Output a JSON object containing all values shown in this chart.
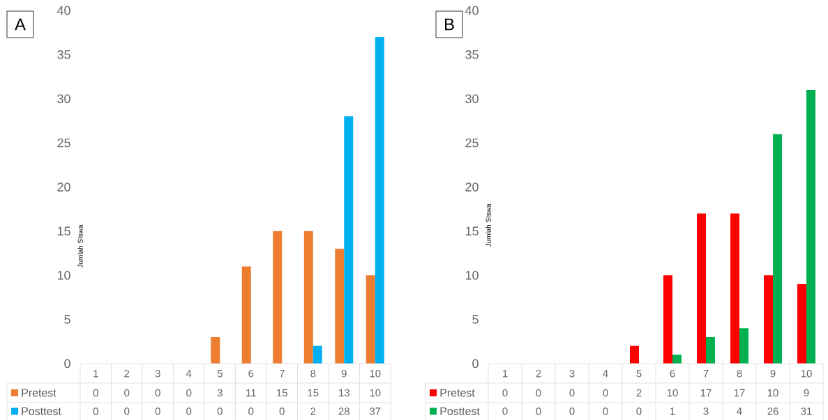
{
  "chart_data": [
    {
      "type": "bar",
      "title": "A",
      "ylabel": "Jumlah SIswa",
      "categories": [
        "1",
        "2",
        "3",
        "4",
        "5",
        "6",
        "7",
        "8",
        "9",
        "10"
      ],
      "series": [
        {
          "name": "Pretest",
          "color": "#ed7d31",
          "values": [
            0,
            0,
            0,
            0,
            3,
            11,
            15,
            15,
            13,
            10
          ]
        },
        {
          "name": "Posttest",
          "color": "#00b0f0",
          "values": [
            0,
            0,
            0,
            0,
            0,
            0,
            0,
            2,
            28,
            37
          ]
        }
      ],
      "ylim": [
        0,
        40
      ],
      "yticks": [
        0,
        5,
        10,
        15,
        20,
        25,
        30,
        35,
        40
      ],
      "data_labels": true,
      "legend": "bottom"
    },
    {
      "type": "bar",
      "title": "B",
      "ylabel": "Jumlah SIswa",
      "categories": [
        "1",
        "2",
        "3",
        "4",
        "5",
        "6",
        "7",
        "8",
        "9",
        "10"
      ],
      "series": [
        {
          "name": "Pretest",
          "color": "#ff0000",
          "values": [
            0,
            0,
            0,
            0,
            2,
            10,
            17,
            17,
            10,
            9
          ]
        },
        {
          "name": "Posttest",
          "color": "#00b050",
          "values": [
            0,
            0,
            0,
            0,
            0,
            1,
            3,
            4,
            26,
            31
          ]
        }
      ],
      "ylim": [
        0,
        40
      ],
      "yticks": [
        0,
        5,
        10,
        15,
        20,
        25,
        30,
        35,
        40
      ],
      "data_labels": true,
      "legend": "bottom"
    }
  ]
}
